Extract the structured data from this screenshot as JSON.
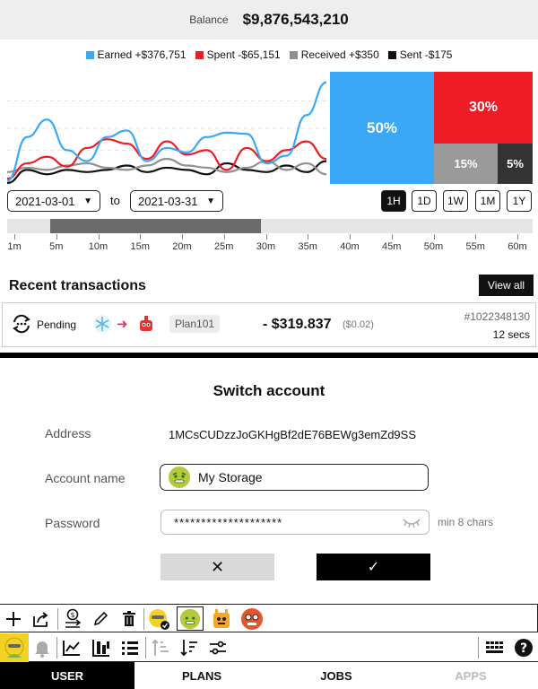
{
  "balance": {
    "label": "Balance",
    "value": "$9,876,543,210"
  },
  "legend": [
    {
      "label": "Earned +$376,751",
      "color": "#3aa8f5"
    },
    {
      "label": "Spent -$65,151",
      "color": "#ee1c24"
    },
    {
      "label": "Received +$350",
      "color": "#909090"
    },
    {
      "label": "Sent -$175",
      "color": "#111111"
    }
  ],
  "chart_data": {
    "type": "line",
    "x": [
      0,
      1,
      2,
      3,
      4,
      5,
      6,
      7,
      8,
      9,
      10,
      11,
      12,
      13,
      14,
      15,
      16
    ],
    "series": [
      {
        "name": "Earned",
        "color": "#3aa8f5",
        "values": [
          2,
          42,
          58,
          30,
          20,
          42,
          48,
          20,
          32,
          28,
          42,
          46,
          45,
          18,
          25,
          62,
          92
        ]
      },
      {
        "name": "Spent",
        "color": "#ee1c24",
        "values": [
          4,
          18,
          24,
          15,
          32,
          40,
          36,
          22,
          38,
          26,
          30,
          12,
          32,
          20,
          30,
          38,
          22
        ]
      },
      {
        "name": "Received",
        "color": "#909090",
        "values": [
          10,
          14,
          12,
          16,
          18,
          14,
          12,
          16,
          22,
          16,
          14,
          10,
          14,
          20,
          12,
          18,
          8
        ]
      },
      {
        "name": "Sent",
        "color": "#111111",
        "values": [
          0,
          12,
          8,
          12,
          10,
          12,
          16,
          10,
          14,
          12,
          8,
          18,
          12,
          10,
          16,
          10,
          20
        ]
      }
    ],
    "ylim": [
      0,
      100
    ],
    "grid": true
  },
  "treemap": [
    {
      "label": "50%",
      "value": 50,
      "color": "#3aa8f5"
    },
    {
      "label": "30%",
      "value": 30,
      "color": "#ee1c24"
    },
    {
      "label": "15%",
      "value": 15,
      "color": "#9a9a9a"
    },
    {
      "label": "5%",
      "value": 5,
      "color": "#333333"
    }
  ],
  "date_range": {
    "from": "2021-03-01",
    "to_label": "to",
    "to": "2021-03-31"
  },
  "range_buttons": [
    "1H",
    "1D",
    "1W",
    "1M",
    "1Y"
  ],
  "range_active": "1H",
  "timeline": {
    "labels": [
      "1m",
      "5m",
      "10m",
      "15m",
      "20m",
      "25m",
      "30m",
      "35m",
      "40m",
      "45m",
      "50m",
      "55m",
      "60m"
    ],
    "window_start": "5m",
    "window_end": "30m"
  },
  "recent": {
    "title": "Recent transactions",
    "view_all": "View all"
  },
  "transaction": {
    "status": "Pending",
    "plan": "Plan101",
    "amount": "- $319.837",
    "fee": "($0.02)",
    "id": "#1022348130",
    "age": "12 secs"
  },
  "modal": {
    "title": "Switch account",
    "address_label": "Address",
    "address_value": "1MCsCUDzzJoGKHgBf2dE76BEWg3emZd9SS",
    "account_label": "Account name",
    "account_value": "My Storage",
    "password_label": "Password",
    "password_value": "********************",
    "password_hint": "min 8 chars",
    "cancel_symbol": "✕",
    "confirm_symbol": "✓"
  },
  "nav": [
    "USER",
    "PLANS",
    "JOBS",
    "APPS"
  ],
  "nav_active": "USER",
  "nav_disabled": "APPS"
}
